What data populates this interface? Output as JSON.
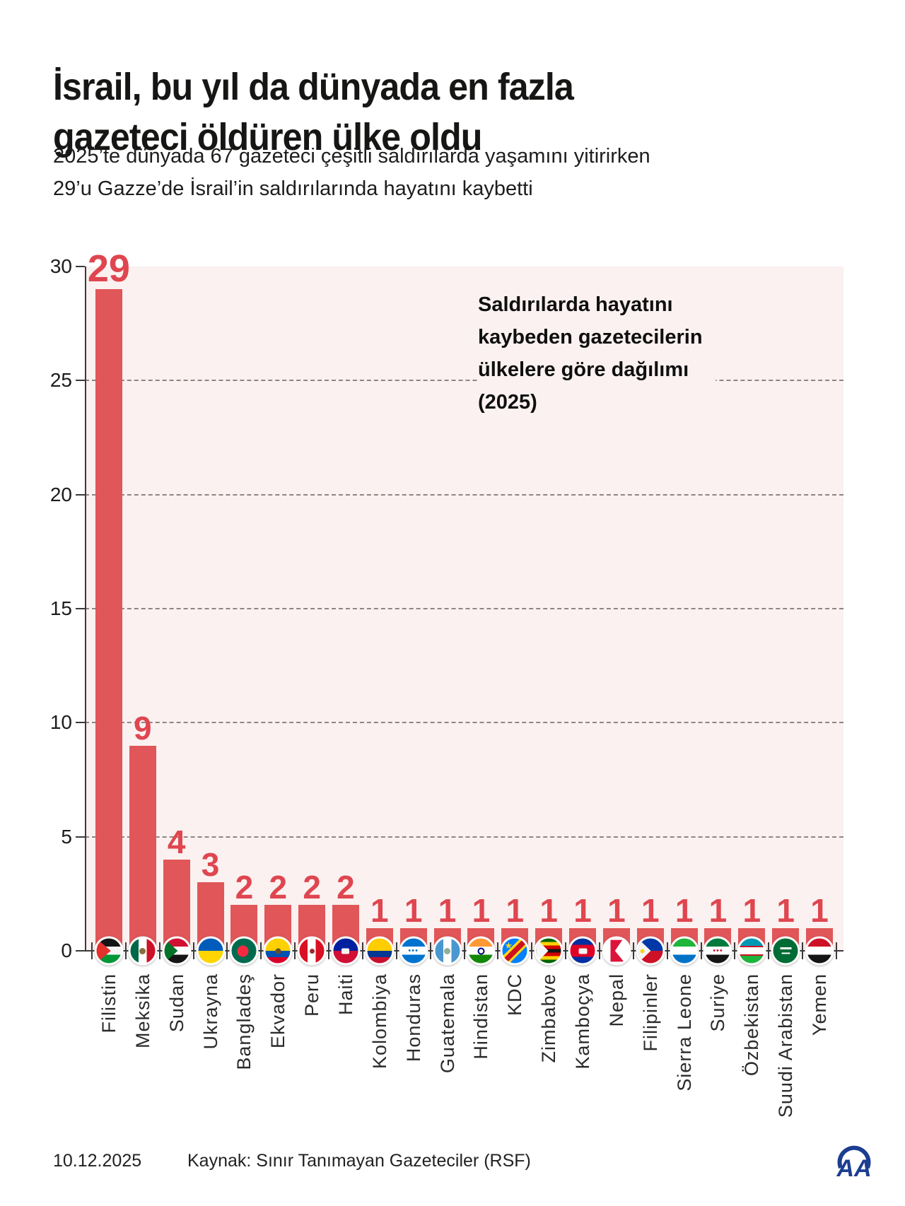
{
  "header": {
    "title_lines": [
      "İsrail, bu yıl da dünyada en fazla",
      "gazeteci öldüren ülke oldu"
    ],
    "subtitle_lines": [
      "2025’te dünyada 67 gazeteci çeşitli saldırılarda yaşamını yitirirken",
      "29’u Gazze’de İsrail’in saldırılarında hayatını kaybetti"
    ]
  },
  "annotation": {
    "lines": [
      "Saldırılarda hayatını",
      "kaybeden gazetecilerin",
      "ülkelere göre dağılımı",
      "(2025)"
    ]
  },
  "footer": {
    "date": "10.12.2025",
    "source": "Kaynak: Sınır Tanımayan Gazeteciler (RSF)",
    "logo_text": "AA"
  },
  "colors": {
    "bar": "#e15658",
    "value_label": "#df464f",
    "plot_bg": "#faf1f0",
    "grid": "#8f8684",
    "axis": "#3a3a3a",
    "logo_blue": "#1c3e91"
  },
  "chart_data": {
    "type": "bar",
    "title": "Saldırılarda hayatını kaybeden gazetecilerin ülkelere göre dağılımı (2025)",
    "xlabel": "",
    "ylabel": "",
    "ylim": [
      0,
      30
    ],
    "yticks": [
      0,
      5,
      10,
      15,
      20,
      25,
      30
    ],
    "grid": "dashed horizontal",
    "legend": "none",
    "categories": [
      "Filistin",
      "Meksika",
      "Sudan",
      "Ukrayna",
      "Bangladeş",
      "Ekvador",
      "Peru",
      "Haiti",
      "Kolombiya",
      "Honduras",
      "Guatemala",
      "Hindistan",
      "KDC",
      "Zimbabve",
      "Kamboçya",
      "Nepal",
      "Filipinler",
      "Sierra Leone",
      "Suriye",
      "Özbekistan",
      "Suudi Arabistan",
      "Yemen"
    ],
    "values": [
      29,
      9,
      4,
      3,
      2,
      2,
      2,
      2,
      1,
      1,
      1,
      1,
      1,
      1,
      1,
      1,
      1,
      1,
      1,
      1,
      1,
      1
    ],
    "flags": [
      {
        "id": "palestine",
        "bg": "linear-gradient(180deg,#151515 0 33%,#f5f5f5 33% 66%,#009736 66% 100%)",
        "tri": "#e4312b",
        "clip": "polygon(0 0, 58% 50%, 0 100%)"
      },
      {
        "id": "mexico",
        "bg": "linear-gradient(90deg,#006847 0 33%,#fff 33% 66%,#ce1126 66% 100%)",
        "emblem": {
          "kind": "dot",
          "color": "#8a6d3b",
          "size": 9
        }
      },
      {
        "id": "sudan",
        "bg": "linear-gradient(180deg,#d21034 0 33%,#fff 33% 66%,#151515 66% 100%)",
        "tri": "#007229",
        "clip": "polygon(0 0, 55% 50%, 0 100%)"
      },
      {
        "id": "ukraine",
        "bg": "linear-gradient(180deg,#005bbb 0 50%,#ffd500 50% 100%)"
      },
      {
        "id": "bangladesh",
        "bg": "#006a4e",
        "emblem": {
          "kind": "dot",
          "color": "#f42a41",
          "size": 16,
          "dx": -2
        }
      },
      {
        "id": "ecuador",
        "bg": "linear-gradient(180deg,#ffd100 0 50%,#0052b4 50% 75%,#d80027 75% 100%)",
        "emblem": {
          "kind": "dot",
          "color": "#6b4c2a",
          "size": 8
        }
      },
      {
        "id": "peru",
        "bg": "linear-gradient(90deg,#d91023 0 33%,#fff 33% 66%,#d91023 66% 100%)",
        "emblem": {
          "kind": "dot",
          "color": "#9b2b2b",
          "size": 7
        }
      },
      {
        "id": "haiti",
        "bg": "linear-gradient(180deg,#00209f 0 50%,#d21034 50% 100%)",
        "emblem": {
          "kind": "bar",
          "color": "#f5f5f5",
          "w": 11,
          "h": 8
        }
      },
      {
        "id": "colombia",
        "bg": "linear-gradient(180deg,#ffcd00 0 50%,#003893 50% 75%,#c8102e 75% 100%)"
      },
      {
        "id": "honduras",
        "bg": "linear-gradient(180deg,#0073cf 0 33%,#fff 33% 66%,#0073cf 66% 100%)",
        "emblem": {
          "kind": "dots",
          "color": "#0073cf"
        }
      },
      {
        "id": "guatemala",
        "bg": "linear-gradient(90deg,#4997d0 0 33%,#fff 33% 66%,#4997d0 66% 100%)",
        "emblem": {
          "kind": "dot",
          "color": "#8fae9b",
          "size": 9
        }
      },
      {
        "id": "india",
        "bg": "linear-gradient(180deg,#ff9933 0 33%,#fff 33% 66%,#138808 66% 100%)",
        "emblem": {
          "kind": "ring",
          "color": "#000080",
          "size": 10
        }
      },
      {
        "id": "dr-congo",
        "bg": "linear-gradient(135deg,#007fff 0 36%,#f7d618 36% 43%,#ce1021 43% 58%,#f7d618 58% 65%,#007fff 65% 100%)",
        "emblem": {
          "kind": "star",
          "color": "#f7d618",
          "size": 13,
          "dx": -9,
          "dy": -8
        }
      },
      {
        "id": "zimbabwe",
        "bg": "linear-gradient(180deg,#006400 0 14.3%,#ffd200 14.3% 28.6%,#d40000 28.6% 42.9%,#151515 42.9% 57.2%,#d40000 57.2% 71.5%,#ffd200 71.5% 85.8%,#006400 85.8% 100%)",
        "tri": "#f5f5f5",
        "clip": "polygon(0 0, 48% 50%, 0 100%)"
      },
      {
        "id": "cambodia",
        "bg": "linear-gradient(180deg,#032ea1 0 26%,#e00025 26% 74%,#032ea1 74% 100%)",
        "emblem": {
          "kind": "bar",
          "color": "#f2f2f2",
          "w": 12,
          "h": 8
        }
      },
      {
        "id": "nepal",
        "bg": "#ffffff",
        "tri": "#dc143c",
        "clip": "polygon(26% 6%, 26% 94%, 80% 94%, 44% 50%, 74% 6%)"
      },
      {
        "id": "philippines",
        "bg": "linear-gradient(180deg,#0038a8 0 50%,#ce1126 50% 100%)",
        "tri": "#f5f5f5",
        "clip": "polygon(0 0, 52% 50%, 0 100%)",
        "emblem": {
          "kind": "dot",
          "color": "#fcd116",
          "size": 6,
          "dx": -11
        }
      },
      {
        "id": "sierra-leone",
        "bg": "linear-gradient(180deg,#1eb53a 0 33%,#fff 33% 66%,#0072c6 66% 100%)"
      },
      {
        "id": "syria",
        "bg": "linear-gradient(180deg,#007a3d 0 33%,#fff 33% 66%,#151515 66% 100%)",
        "emblem": {
          "kind": "dots",
          "color": "#ce1126"
        }
      },
      {
        "id": "uzbekistan",
        "bg": "linear-gradient(180deg,#0099b5 0 30%,#ce1126 30% 35%,#fff 35% 65%,#ce1126 65% 70%,#1eb53a 70% 100%)"
      },
      {
        "id": "saudi-arabia",
        "bg": "#006c35",
        "emblem": {
          "kind": "bars2",
          "color": "#ffffff"
        }
      },
      {
        "id": "yemen",
        "bg": "linear-gradient(180deg,#ce1126 0 33%,#fff 33% 66%,#151515 66% 100%)"
      }
    ]
  }
}
